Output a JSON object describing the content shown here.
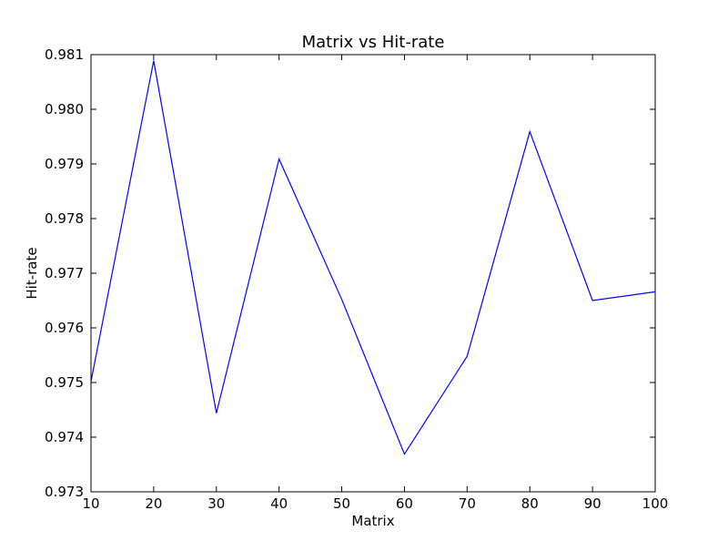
{
  "chart_data": {
    "type": "line",
    "title": "Matrix vs Hit-rate",
    "xlabel": "Matrix",
    "ylabel": "Hit-rate",
    "xlim": [
      10,
      100
    ],
    "ylim": [
      0.973,
      0.981
    ],
    "xticks": [
      "10",
      "20",
      "30",
      "40",
      "50",
      "60",
      "70",
      "80",
      "90",
      "100"
    ],
    "yticks": [
      "0.973",
      "0.974",
      "0.975",
      "0.976",
      "0.977",
      "0.978",
      "0.979",
      "0.980",
      "0.981"
    ],
    "grid": false,
    "legend": "none",
    "line_color": "#0000ff",
    "x": [
      10,
      20,
      30,
      40,
      50,
      60,
      70,
      80,
      90,
      100
    ],
    "y": [
      0.97502,
      0.98089,
      0.97444,
      0.97909,
      0.97652,
      0.97369,
      0.97548,
      0.97959,
      0.9765,
      0.97666
    ]
  }
}
